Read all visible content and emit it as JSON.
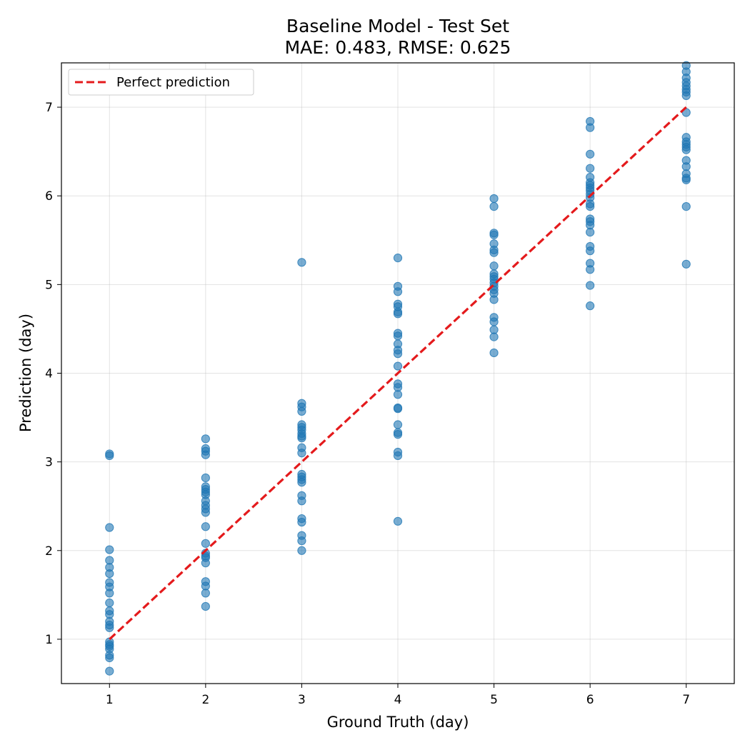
{
  "chart_data": {
    "type": "scatter",
    "title": "Baseline Model - Test Set",
    "subtitle": "MAE: 0.483, RMSE: 0.625",
    "xlabel": "Ground Truth (day)",
    "ylabel": "Prediction (day)",
    "xlim": [
      0.5,
      7.5
    ],
    "ylim": [
      0.5,
      7.5
    ],
    "xticks": [
      "1",
      "2",
      "3",
      "4",
      "5",
      "6",
      "7"
    ],
    "yticks": [
      "1",
      "2",
      "3",
      "4",
      "5",
      "6",
      "7"
    ],
    "grid": true,
    "legend": {
      "placement": "top-left",
      "entries": [
        "Perfect prediction"
      ]
    },
    "point_color": "#1f77b4",
    "line_color": "#e41a1c",
    "reference_line": {
      "name": "Perfect prediction",
      "x": [
        1,
        7
      ],
      "y": [
        1,
        7
      ],
      "style": "dashed"
    },
    "points": [
      {
        "x": 1,
        "y": 3.09
      },
      {
        "x": 1,
        "y": 3.07
      },
      {
        "x": 1,
        "y": 2.26
      },
      {
        "x": 1,
        "y": 2.01
      },
      {
        "x": 1,
        "y": 1.89
      },
      {
        "x": 1,
        "y": 1.81
      },
      {
        "x": 1,
        "y": 1.74
      },
      {
        "x": 1,
        "y": 1.64
      },
      {
        "x": 1,
        "y": 1.59
      },
      {
        "x": 1,
        "y": 1.52
      },
      {
        "x": 1,
        "y": 1.41
      },
      {
        "x": 1,
        "y": 1.32
      },
      {
        "x": 1,
        "y": 1.28
      },
      {
        "x": 1,
        "y": 1.2
      },
      {
        "x": 1,
        "y": 1.16
      },
      {
        "x": 1,
        "y": 1.13
      },
      {
        "x": 1,
        "y": 0.97
      },
      {
        "x": 1,
        "y": 0.94
      },
      {
        "x": 1,
        "y": 0.92
      },
      {
        "x": 1,
        "y": 0.89
      },
      {
        "x": 1,
        "y": 0.82
      },
      {
        "x": 1,
        "y": 0.79
      },
      {
        "x": 1,
        "y": 0.64
      },
      {
        "x": 2,
        "y": 3.26
      },
      {
        "x": 2,
        "y": 3.15
      },
      {
        "x": 2,
        "y": 3.12
      },
      {
        "x": 2,
        "y": 3.08
      },
      {
        "x": 2,
        "y": 2.82
      },
      {
        "x": 2,
        "y": 2.72
      },
      {
        "x": 2,
        "y": 2.69
      },
      {
        "x": 2,
        "y": 2.66
      },
      {
        "x": 2,
        "y": 2.63
      },
      {
        "x": 2,
        "y": 2.56
      },
      {
        "x": 2,
        "y": 2.51
      },
      {
        "x": 2,
        "y": 2.47
      },
      {
        "x": 2,
        "y": 2.43
      },
      {
        "x": 2,
        "y": 2.27
      },
      {
        "x": 2,
        "y": 2.08
      },
      {
        "x": 2,
        "y": 1.97
      },
      {
        "x": 2,
        "y": 1.94
      },
      {
        "x": 2,
        "y": 1.92
      },
      {
        "x": 2,
        "y": 1.86
      },
      {
        "x": 2,
        "y": 1.65
      },
      {
        "x": 2,
        "y": 1.6
      },
      {
        "x": 2,
        "y": 1.52
      },
      {
        "x": 2,
        "y": 1.37
      },
      {
        "x": 3,
        "y": 5.25
      },
      {
        "x": 3,
        "y": 3.66
      },
      {
        "x": 3,
        "y": 3.62
      },
      {
        "x": 3,
        "y": 3.57
      },
      {
        "x": 3,
        "y": 3.42
      },
      {
        "x": 3,
        "y": 3.39
      },
      {
        "x": 3,
        "y": 3.36
      },
      {
        "x": 3,
        "y": 3.32
      },
      {
        "x": 3,
        "y": 3.29
      },
      {
        "x": 3,
        "y": 3.27
      },
      {
        "x": 3,
        "y": 3.16
      },
      {
        "x": 3,
        "y": 3.1
      },
      {
        "x": 3,
        "y": 2.86
      },
      {
        "x": 3,
        "y": 2.83
      },
      {
        "x": 3,
        "y": 2.8
      },
      {
        "x": 3,
        "y": 2.77
      },
      {
        "x": 3,
        "y": 2.62
      },
      {
        "x": 3,
        "y": 2.56
      },
      {
        "x": 3,
        "y": 2.36
      },
      {
        "x": 3,
        "y": 2.32
      },
      {
        "x": 3,
        "y": 2.17
      },
      {
        "x": 3,
        "y": 2.11
      },
      {
        "x": 3,
        "y": 2.0
      },
      {
        "x": 4,
        "y": 5.3
      },
      {
        "x": 4,
        "y": 4.98
      },
      {
        "x": 4,
        "y": 4.92
      },
      {
        "x": 4,
        "y": 4.78
      },
      {
        "x": 4,
        "y": 4.75
      },
      {
        "x": 4,
        "y": 4.69
      },
      {
        "x": 4,
        "y": 4.67
      },
      {
        "x": 4,
        "y": 4.45
      },
      {
        "x": 4,
        "y": 4.42
      },
      {
        "x": 4,
        "y": 4.33
      },
      {
        "x": 4,
        "y": 4.26
      },
      {
        "x": 4,
        "y": 4.22
      },
      {
        "x": 4,
        "y": 4.08
      },
      {
        "x": 4,
        "y": 3.88
      },
      {
        "x": 4,
        "y": 3.84
      },
      {
        "x": 4,
        "y": 3.76
      },
      {
        "x": 4,
        "y": 3.61
      },
      {
        "x": 4,
        "y": 3.6
      },
      {
        "x": 4,
        "y": 3.42
      },
      {
        "x": 4,
        "y": 3.33
      },
      {
        "x": 4,
        "y": 3.31
      },
      {
        "x": 4,
        "y": 3.11
      },
      {
        "x": 4,
        "y": 3.07
      },
      {
        "x": 4,
        "y": 2.33
      },
      {
        "x": 5,
        "y": 5.97
      },
      {
        "x": 5,
        "y": 5.88
      },
      {
        "x": 5,
        "y": 5.58
      },
      {
        "x": 5,
        "y": 5.56
      },
      {
        "x": 5,
        "y": 5.46
      },
      {
        "x": 5,
        "y": 5.39
      },
      {
        "x": 5,
        "y": 5.36
      },
      {
        "x": 5,
        "y": 5.21
      },
      {
        "x": 5,
        "y": 5.12
      },
      {
        "x": 5,
        "y": 5.09
      },
      {
        "x": 5,
        "y": 5.06
      },
      {
        "x": 5,
        "y": 5.02
      },
      {
        "x": 5,
        "y": 4.98
      },
      {
        "x": 5,
        "y": 4.94
      },
      {
        "x": 5,
        "y": 4.9
      },
      {
        "x": 5,
        "y": 4.83
      },
      {
        "x": 5,
        "y": 4.63
      },
      {
        "x": 5,
        "y": 4.58
      },
      {
        "x": 5,
        "y": 4.49
      },
      {
        "x": 5,
        "y": 4.41
      },
      {
        "x": 5,
        "y": 4.23
      },
      {
        "x": 6,
        "y": 6.84
      },
      {
        "x": 6,
        "y": 6.77
      },
      {
        "x": 6,
        "y": 6.47
      },
      {
        "x": 6,
        "y": 6.31
      },
      {
        "x": 6,
        "y": 6.21
      },
      {
        "x": 6,
        "y": 6.15
      },
      {
        "x": 6,
        "y": 6.12
      },
      {
        "x": 6,
        "y": 6.09
      },
      {
        "x": 6,
        "y": 6.06
      },
      {
        "x": 6,
        "y": 6.02
      },
      {
        "x": 6,
        "y": 5.98
      },
      {
        "x": 6,
        "y": 5.91
      },
      {
        "x": 6,
        "y": 5.88
      },
      {
        "x": 6,
        "y": 5.74
      },
      {
        "x": 6,
        "y": 5.71
      },
      {
        "x": 6,
        "y": 5.67
      },
      {
        "x": 6,
        "y": 5.59
      },
      {
        "x": 6,
        "y": 5.43
      },
      {
        "x": 6,
        "y": 5.38
      },
      {
        "x": 6,
        "y": 5.24
      },
      {
        "x": 6,
        "y": 5.17
      },
      {
        "x": 6,
        "y": 4.99
      },
      {
        "x": 6,
        "y": 4.76
      },
      {
        "x": 7,
        "y": 7.47
      },
      {
        "x": 7,
        "y": 7.4
      },
      {
        "x": 7,
        "y": 7.33
      },
      {
        "x": 7,
        "y": 7.28
      },
      {
        "x": 7,
        "y": 7.24
      },
      {
        "x": 7,
        "y": 7.2
      },
      {
        "x": 7,
        "y": 7.17
      },
      {
        "x": 7,
        "y": 7.13
      },
      {
        "x": 7,
        "y": 6.94
      },
      {
        "x": 7,
        "y": 6.66
      },
      {
        "x": 7,
        "y": 6.61
      },
      {
        "x": 7,
        "y": 6.58
      },
      {
        "x": 7,
        "y": 6.55
      },
      {
        "x": 7,
        "y": 6.52
      },
      {
        "x": 7,
        "y": 6.4
      },
      {
        "x": 7,
        "y": 6.33
      },
      {
        "x": 7,
        "y": 6.25
      },
      {
        "x": 7,
        "y": 6.2
      },
      {
        "x": 7,
        "y": 6.18
      },
      {
        "x": 7,
        "y": 5.88
      },
      {
        "x": 7,
        "y": 5.23
      }
    ]
  }
}
